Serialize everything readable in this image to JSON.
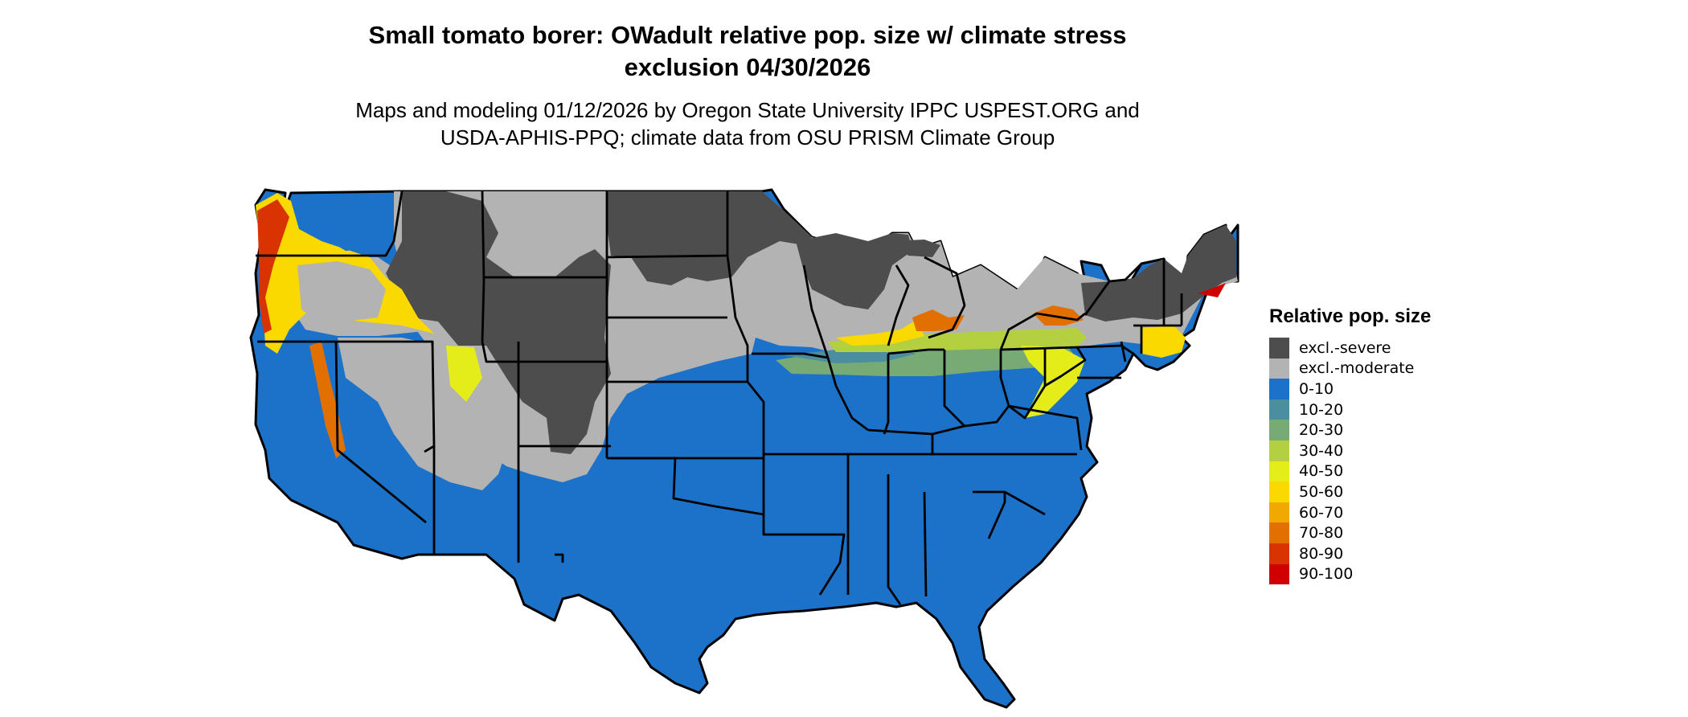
{
  "title_line1": "Small tomato borer: OWadult relative pop. size w/ climate stress",
  "title_line2": "exclusion 04/30/2026",
  "subtitle_line1": "Maps and modeling 01/12/2026 by Oregon State University IPPC USPEST.ORG and",
  "subtitle_line2": "USDA-APHIS-PPQ; climate data from OSU PRISM Climate Group",
  "legend": {
    "title": "Relative pop. size",
    "items": [
      {
        "label": "excl.-severe",
        "color": "#4d4d4d"
      },
      {
        "label": "excl.-moderate",
        "color": "#b3b3b3"
      },
      {
        "label": "0-10",
        "color": "#1c72c8"
      },
      {
        "label": "10-20",
        "color": "#4a8ea0"
      },
      {
        "label": "20-30",
        "color": "#78aa75"
      },
      {
        "label": "30-40",
        "color": "#b4d041"
      },
      {
        "label": "40-50",
        "color": "#e4ec1a"
      },
      {
        "label": "50-60",
        "color": "#fad900"
      },
      {
        "label": "60-70",
        "color": "#f1a800"
      },
      {
        "label": "70-80",
        "color": "#e27000"
      },
      {
        "label": "80-90",
        "color": "#d83300"
      },
      {
        "label": "90-100",
        "color": "#d00000"
      }
    ]
  }
}
